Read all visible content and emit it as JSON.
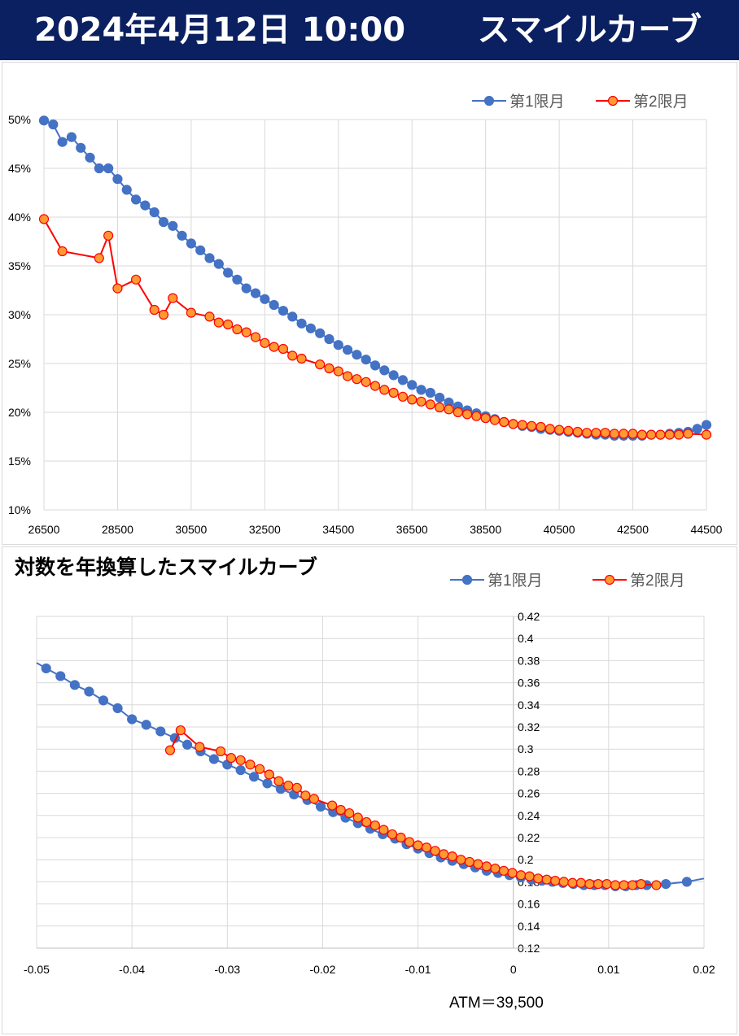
{
  "header": {
    "date": "2024年4月12日 10:00",
    "title": "スマイルカーブ"
  },
  "colors": {
    "header_bg": "#0b2060",
    "series1": "#4472c4",
    "series2_line": "#ff0000",
    "series2_fill": "#ff9933",
    "grid": "#d9d9d9"
  },
  "chart_data": [
    {
      "type": "line",
      "title": "",
      "xlabel": "",
      "ylabel": "",
      "xlim": [
        26500,
        44500
      ],
      "ylim": [
        0.1,
        0.5
      ],
      "x_ticks": [
        26500,
        28500,
        30500,
        32500,
        34500,
        36500,
        38500,
        40500,
        42500,
        44500
      ],
      "y_ticks": [
        0.1,
        0.15,
        0.2,
        0.25,
        0.3,
        0.35,
        0.4,
        0.45,
        0.5
      ],
      "x_tick_labels": [
        "26500",
        "28500",
        "30500",
        "32500",
        "34500",
        "36500",
        "38500",
        "40500",
        "42500",
        "44500"
      ],
      "y_tick_labels": [
        "10%",
        "15%",
        "20%",
        "25%",
        "30%",
        "35%",
        "40%",
        "45%",
        "50%"
      ],
      "grid": true,
      "legend_position": "top-right",
      "series": [
        {
          "name": "第1限月",
          "x": [
            26500,
            26750,
            27000,
            27250,
            27500,
            27750,
            28000,
            28250,
            28500,
            28750,
            29000,
            29250,
            29500,
            29750,
            30000,
            30250,
            30500,
            30750,
            31000,
            31250,
            31500,
            31750,
            32000,
            32250,
            32500,
            32750,
            33000,
            33250,
            33500,
            33750,
            34000,
            34250,
            34500,
            34750,
            35000,
            35250,
            35500,
            35750,
            36000,
            36250,
            36500,
            36750,
            37000,
            37250,
            37500,
            37750,
            38000,
            38250,
            38500,
            38750,
            39000,
            39250,
            39500,
            39750,
            40000,
            40250,
            40500,
            40750,
            41000,
            41250,
            41500,
            41750,
            42000,
            42250,
            42500,
            42750,
            43000,
            43250,
            43500,
            43750,
            44000,
            44250,
            44500
          ],
          "values": [
            0.499,
            0.495,
            0.477,
            0.482,
            0.471,
            0.461,
            0.45,
            0.45,
            0.439,
            0.428,
            0.418,
            0.412,
            0.405,
            0.395,
            0.391,
            0.381,
            0.373,
            0.366,
            0.358,
            0.352,
            0.343,
            0.336,
            0.327,
            0.322,
            0.316,
            0.31,
            0.304,
            0.298,
            0.291,
            0.286,
            0.281,
            0.275,
            0.269,
            0.264,
            0.259,
            0.254,
            0.248,
            0.243,
            0.238,
            0.233,
            0.228,
            0.223,
            0.22,
            0.215,
            0.21,
            0.206,
            0.202,
            0.199,
            0.196,
            0.193,
            0.19,
            0.188,
            0.186,
            0.185,
            0.183,
            0.182,
            0.181,
            0.18,
            0.179,
            0.178,
            0.177,
            0.177,
            0.176,
            0.176,
            0.176,
            0.176,
            0.177,
            0.177,
            0.178,
            0.179,
            0.18,
            0.183,
            0.187
          ]
        },
        {
          "name": "第2限月",
          "x": [
            26500,
            27000,
            28000,
            28250,
            28500,
            29000,
            29500,
            29750,
            30000,
            30500,
            31000,
            31250,
            31500,
            31750,
            32000,
            32250,
            32500,
            32750,
            33000,
            33250,
            33500,
            34000,
            34250,
            34500,
            34750,
            35000,
            35250,
            35500,
            35750,
            36000,
            36250,
            36500,
            36750,
            37000,
            37250,
            37500,
            37750,
            38000,
            38250,
            38500,
            38750,
            39000,
            39250,
            39500,
            39750,
            40000,
            40250,
            40500,
            40750,
            41000,
            41250,
            41500,
            41750,
            42000,
            42250,
            42500,
            42750,
            43000,
            43250,
            43500,
            43750,
            44000,
            44500
          ],
          "values": [
            0.398,
            0.365,
            0.358,
            0.381,
            0.327,
            0.336,
            0.305,
            0.3,
            0.317,
            0.302,
            0.298,
            0.292,
            0.29,
            0.285,
            0.282,
            0.277,
            0.271,
            0.267,
            0.265,
            0.258,
            0.255,
            0.249,
            0.245,
            0.242,
            0.237,
            0.234,
            0.231,
            0.227,
            0.223,
            0.22,
            0.216,
            0.213,
            0.211,
            0.208,
            0.205,
            0.203,
            0.2,
            0.198,
            0.196,
            0.194,
            0.192,
            0.19,
            0.188,
            0.187,
            0.186,
            0.185,
            0.183,
            0.182,
            0.181,
            0.18,
            0.179,
            0.179,
            0.179,
            0.178,
            0.178,
            0.178,
            0.177,
            0.177,
            0.177,
            0.177,
            0.177,
            0.178,
            0.177
          ]
        }
      ]
    },
    {
      "type": "line",
      "title": "対数を年換算したスマイルカーブ",
      "xlabel": "",
      "ylabel": "",
      "xlim": [
        -0.05,
        0.02
      ],
      "ylim": [
        0.12,
        0.42
      ],
      "x_ticks": [
        -0.05,
        -0.04,
        -0.03,
        -0.02,
        -0.01,
        0,
        0.01,
        0.02
      ],
      "y_ticks": [
        0.12,
        0.14,
        0.16,
        0.18,
        0.2,
        0.22,
        0.24,
        0.26,
        0.28,
        0.3,
        0.32,
        0.34,
        0.36,
        0.38,
        0.4,
        0.42
      ],
      "x_tick_labels": [
        "-0.05",
        "-0.04",
        "-0.03",
        "-0.02",
        "-0.01",
        "0",
        "0.01",
        "0.02"
      ],
      "y_tick_labels": [
        "0.12",
        "0.14",
        "0.16",
        "0.18",
        "0.2",
        "0.22",
        "0.24",
        "0.26",
        "0.28",
        "0.3",
        "0.32",
        "0.34",
        "0.36",
        "0.38",
        "0.4",
        "0.42"
      ],
      "grid": true,
      "legend_position": "top-right",
      "annotation": "ATM＝39,500",
      "series": [
        {
          "name": "第1限月",
          "line_extent": [
            [
              -0.05,
              0.378
            ],
            [
              0.02,
              0.183
            ]
          ],
          "x": [
            -0.049,
            -0.0475,
            -0.046,
            -0.0445,
            -0.043,
            -0.0415,
            -0.04,
            -0.0385,
            -0.037,
            -0.0355,
            -0.0342,
            -0.0328,
            -0.0314,
            -0.03,
            -0.0286,
            -0.0272,
            -0.0258,
            -0.0244,
            -0.023,
            -0.0216,
            -0.0202,
            -0.0189,
            -0.0176,
            -0.0163,
            -0.015,
            -0.0137,
            -0.0124,
            -0.0112,
            -0.01,
            -0.0088,
            -0.0076,
            -0.0064,
            -0.0052,
            -0.004,
            -0.0028,
            -0.0016,
            -0.0004,
            0.0008,
            0.0019,
            0.003,
            0.0041,
            0.0052,
            0.0063,
            0.0074,
            0.0085,
            0.0096,
            0.0107,
            0.0118,
            0.0129,
            0.014,
            0.016,
            0.0182
          ],
          "values": [
            0.373,
            0.366,
            0.358,
            0.352,
            0.344,
            0.337,
            0.327,
            0.322,
            0.316,
            0.31,
            0.304,
            0.298,
            0.291,
            0.286,
            0.281,
            0.275,
            0.269,
            0.264,
            0.259,
            0.254,
            0.248,
            0.243,
            0.238,
            0.233,
            0.228,
            0.223,
            0.219,
            0.214,
            0.21,
            0.206,
            0.202,
            0.199,
            0.196,
            0.193,
            0.19,
            0.188,
            0.186,
            0.184,
            0.182,
            0.181,
            0.18,
            0.179,
            0.178,
            0.177,
            0.177,
            0.177,
            0.176,
            0.176,
            0.177,
            0.177,
            0.178,
            0.18
          ]
        },
        {
          "name": "第2限月",
          "x": [
            -0.036,
            -0.0349,
            -0.0329,
            -0.0307,
            -0.0296,
            -0.0286,
            -0.0276,
            -0.0266,
            -0.0256,
            -0.0246,
            -0.0236,
            -0.0227,
            -0.0218,
            -0.0209,
            -0.019,
            -0.0181,
            -0.0172,
            -0.0163,
            -0.0154,
            -0.0145,
            -0.0136,
            -0.0127,
            -0.0118,
            -0.0109,
            -0.01,
            -0.0091,
            -0.0082,
            -0.0073,
            -0.0064,
            -0.0055,
            -0.0046,
            -0.0037,
            -0.0028,
            -0.0019,
            -0.001,
            -0.0001,
            0.0008,
            0.0017,
            0.0026,
            0.0035,
            0.0044,
            0.0053,
            0.0062,
            0.0071,
            0.008,
            0.0089,
            0.0098,
            0.0107,
            0.0116,
            0.0125,
            0.0134,
            0.015
          ],
          "values": [
            0.299,
            0.317,
            0.302,
            0.298,
            0.292,
            0.29,
            0.286,
            0.282,
            0.277,
            0.271,
            0.267,
            0.265,
            0.258,
            0.255,
            0.249,
            0.245,
            0.242,
            0.238,
            0.234,
            0.231,
            0.227,
            0.223,
            0.22,
            0.216,
            0.213,
            0.211,
            0.208,
            0.205,
            0.203,
            0.2,
            0.198,
            0.196,
            0.194,
            0.192,
            0.19,
            0.188,
            0.186,
            0.185,
            0.183,
            0.182,
            0.181,
            0.18,
            0.179,
            0.179,
            0.178,
            0.178,
            0.178,
            0.177,
            0.177,
            0.177,
            0.178,
            0.177
          ]
        }
      ]
    }
  ]
}
